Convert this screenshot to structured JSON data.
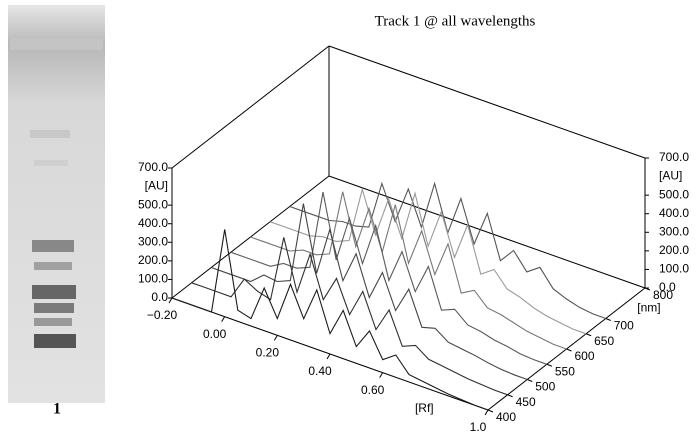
{
  "plate_label": "1",
  "chart_data": {
    "type": "waterfall3d",
    "title": "Track 1 @ all wavelengths",
    "xlabel": "[Rf]",
    "ylabel": "[AU]",
    "zlabel": "[nm]",
    "xlim": [
      -0.2,
      1.0
    ],
    "ylim": [
      0,
      700
    ],
    "zlim": [
      400,
      800
    ],
    "xticks": [
      {
        "value": -0.2,
        "label": "−0.20"
      },
      {
        "value": 0,
        "label": "0.00"
      },
      {
        "value": 0.2,
        "label": "0.20"
      },
      {
        "value": 0.4,
        "label": "0.40"
      },
      {
        "value": 0.6,
        "label": "0.60"
      },
      {
        "value": 1,
        "label": "1.0"
      }
    ],
    "yticks": [
      {
        "value": 0,
        "label": "0.0"
      },
      {
        "value": 100,
        "label": "100.0"
      },
      {
        "value": 200,
        "label": "200.0"
      },
      {
        "value": 300,
        "label": "300.0"
      },
      {
        "value": 400,
        "label": "400.0"
      },
      {
        "value": 500,
        "label": "500.0"
      },
      {
        "value": 700,
        "label": "700.0"
      }
    ],
    "zticks": [
      400,
      450,
      500,
      550,
      600,
      650,
      700,
      800
    ],
    "x": [
      -0.2,
      -0.15,
      -0.1,
      -0.05,
      0,
      0.05,
      0.1,
      0.15,
      0.2,
      0.25,
      0.3,
      0.35,
      0.4,
      0.45,
      0.5,
      0.55,
      0.6,
      0.65,
      0.7,
      0.75,
      0.8,
      0.85,
      0.9,
      0.95,
      1.0
    ],
    "series": [
      {
        "wavelength": 400,
        "color": "#1a1a1a",
        "values": [
          0,
          0,
          0,
          0,
          470,
          60,
          40,
          230,
          90,
          300,
          140,
          320,
          110,
          260,
          90,
          200,
          70,
          120,
          40,
          30,
          20,
          10,
          5,
          0,
          0
        ]
      },
      {
        "wavelength": 450,
        "color": "#2e2e2e",
        "values": [
          0,
          0,
          0,
          0,
          120,
          80,
          60,
          420,
          150,
          380,
          160,
          300,
          130,
          280,
          100,
          230,
          60,
          90,
          40,
          30,
          20,
          10,
          5,
          0,
          0
        ]
      },
      {
        "wavelength": 500,
        "color": "#444",
        "values": [
          0,
          0,
          0,
          0,
          60,
          50,
          80,
          520,
          170,
          430,
          180,
          350,
          140,
          300,
          120,
          260,
          80,
          100,
          50,
          40,
          30,
          15,
          5,
          0,
          0
        ]
      },
      {
        "wavelength": 550,
        "color": "#5a5a5a",
        "values": [
          0,
          0,
          0,
          0,
          40,
          40,
          70,
          500,
          160,
          410,
          190,
          420,
          150,
          330,
          140,
          300,
          90,
          120,
          60,
          50,
          30,
          20,
          5,
          0,
          0
        ]
      },
      {
        "wavelength": 600,
        "color": "#777",
        "values": [
          0,
          0,
          0,
          0,
          30,
          30,
          60,
          420,
          150,
          380,
          170,
          450,
          160,
          360,
          150,
          340,
          100,
          140,
          70,
          60,
          40,
          20,
          10,
          0,
          0
        ]
      },
      {
        "wavelength": 650,
        "color": "#999",
        "values": [
          0,
          0,
          0,
          0,
          20,
          20,
          50,
          350,
          130,
          350,
          160,
          430,
          170,
          380,
          160,
          360,
          120,
          170,
          90,
          70,
          40,
          20,
          10,
          0,
          0
        ]
      },
      {
        "wavelength": 700,
        "color": "#555",
        "values": [
          0,
          0,
          0,
          0,
          20,
          20,
          40,
          300,
          120,
          320,
          140,
          400,
          160,
          370,
          150,
          340,
          110,
          190,
          100,
          150,
          60,
          30,
          10,
          0,
          0
        ]
      }
    ]
  }
}
